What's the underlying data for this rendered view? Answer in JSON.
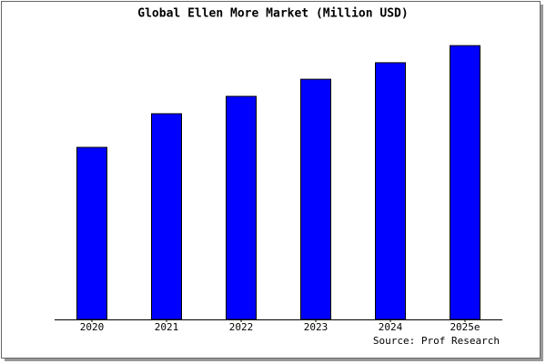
{
  "chart_data": {
    "type": "bar",
    "title": "Global Ellen More Market (Million USD)",
    "categories": [
      "2020",
      "2021",
      "2022",
      "2023",
      "2024",
      "2025e"
    ],
    "values": [
      62.4,
      74.6,
      80.9,
      87.1,
      93.1,
      99.3
    ],
    "color": "#0000ff",
    "ylim": [
      0,
      100
    ],
    "source": "Source: Prof Research"
  }
}
